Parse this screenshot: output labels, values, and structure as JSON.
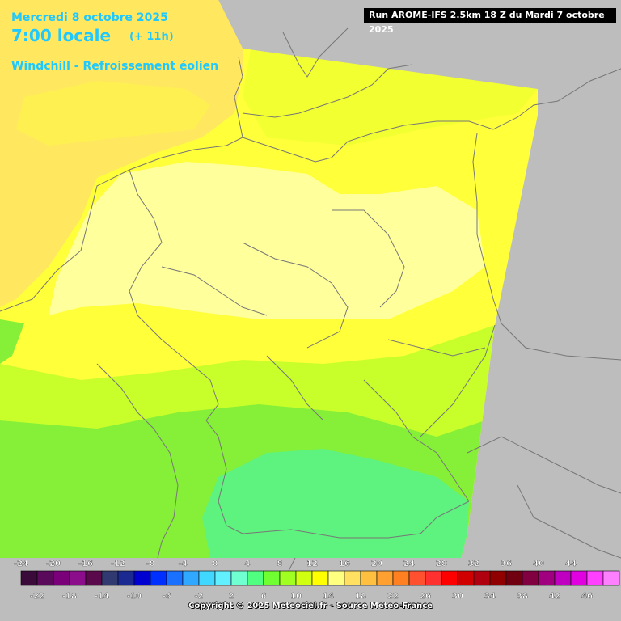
{
  "header": {
    "date": "Mercredi 8 octobre 2025",
    "time": "7:00 locale",
    "offset": "(+ 11h)",
    "subtitle": "Windchill - Refroissement éolien",
    "run_info": "Run AROME-IFS 2.5km 18 Z du Mardi 7 octobre 2025"
  },
  "legend": {
    "top_labels": [
      "-24",
      "-20",
      "-16",
      "-12",
      "-8",
      "-4",
      "0",
      "4",
      "8",
      "12",
      "16",
      "20",
      "24",
      "28",
      "32",
      "36",
      "40",
      "44"
    ],
    "bottom_labels": [
      "-22",
      "-18",
      "-14",
      "-10",
      "-6",
      "-2",
      "2",
      "6",
      "10",
      "14",
      "18",
      "22",
      "26",
      "30",
      "34",
      "38",
      "42",
      "46"
    ],
    "colors": [
      "#3a0a3a",
      "#5a0a5a",
      "#7a007a",
      "#8b0d8b",
      "#5a0a4a",
      "#303a70",
      "#1a2a90",
      "#0000d0",
      "#0030ff",
      "#1a70ff",
      "#30a8ff",
      "#40d8ff",
      "#60f0ff",
      "#70ffd0",
      "#50ff80",
      "#70ff30",
      "#a0ff20",
      "#d0ff10",
      "#ffff00",
      "#ffff80",
      "#ffe060",
      "#ffc040",
      "#ffa030",
      "#ff8020",
      "#ff5030",
      "#ff3030",
      "#ff0000",
      "#d00000",
      "#b00010",
      "#900000",
      "#700010",
      "#800040",
      "#a00080",
      "#c000c0",
      "#e000e0",
      "#ff40ff",
      "#ff80ff"
    ]
  },
  "map": {
    "colors": {
      "sea": "#ffe860",
      "land_north": "#ffff9c",
      "coast_yellow": "#ffff3a",
      "mid_yellow": "#f2ff30",
      "green_yellow": "#c8ff2a",
      "green": "#86f038",
      "cyan_green": "#5ef27e",
      "outside": "#bdbdbd",
      "border": "#777777"
    }
  },
  "footer": {
    "copyright": "Copyright © 2025 Meteociel.fr - Source Meteo-France"
  }
}
